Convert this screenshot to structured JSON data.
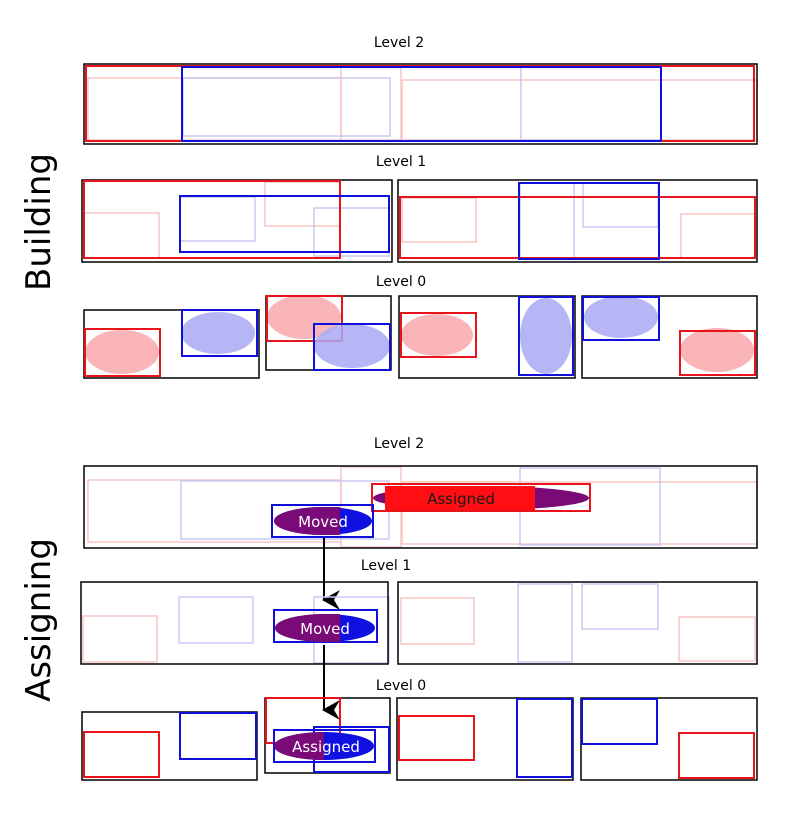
{
  "sections": {
    "building": {
      "title": "Building",
      "level2": "Level 2",
      "level1": "Level 1",
      "level0": "Level 0"
    },
    "assigning": {
      "title": "Assigning",
      "level2": "Level 2",
      "level1": "Level 1",
      "level0": "Level 0",
      "moved_label": "Moved",
      "assigned_label": "Assigned"
    }
  },
  "colors": {
    "red": "#e8141c",
    "blue": "#1010d8",
    "black": "#000000",
    "faint_red": "#f7c6c6",
    "faint_blue": "#c8c8f2",
    "ellipse_red": "#f9a8ad",
    "ellipse_blue": "#a9a9f5",
    "purple": "#7a0a78"
  }
}
